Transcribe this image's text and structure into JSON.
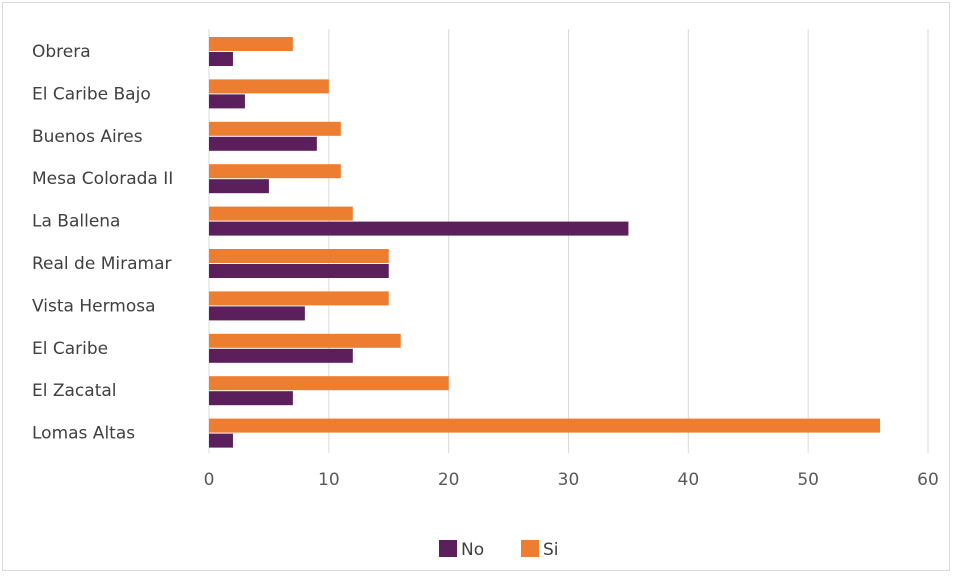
{
  "chart_data": {
    "type": "bar",
    "orientation": "horizontal",
    "categories": [
      "Obrera",
      "El Caribe Bajo",
      "Buenos Aires",
      "Mesa Colorada II",
      "La Ballena",
      "Real de Miramar",
      "Vista Hermosa",
      "El Caribe",
      "El Zacatal",
      "Lomas Altas"
    ],
    "series": [
      {
        "name": "No",
        "color": "#5b1f5b",
        "values": [
          2,
          3,
          9,
          5,
          35,
          15,
          8,
          12,
          7,
          2
        ]
      },
      {
        "name": "Si",
        "color": "#ed7d31",
        "values": [
          7,
          10,
          11,
          11,
          12,
          15,
          15,
          16,
          20,
          56
        ]
      }
    ],
    "xlim": [
      0,
      60
    ],
    "xticks": [
      "0",
      "10",
      "20",
      "30",
      "40",
      "50",
      "60"
    ],
    "grid": true,
    "legend_position": "bottom",
    "title": "",
    "xlabel": "",
    "ylabel": ""
  }
}
